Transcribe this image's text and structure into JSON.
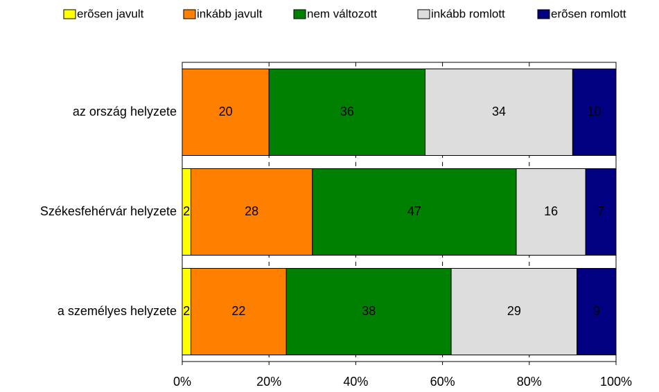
{
  "chart_data": {
    "type": "stacked-bar-horizontal",
    "categories": [
      "az ország helyzete",
      "Székesfehérvár helyzete",
      "a személyes helyzete"
    ],
    "series": [
      {
        "name": "erõsen javult",
        "color": "#ffff00",
        "values": [
          null,
          2,
          2
        ]
      },
      {
        "name": "inkább javult",
        "color": "#ff8000",
        "values": [
          20,
          28,
          22
        ]
      },
      {
        "name": "nem változott",
        "color": "#008000",
        "values": [
          36,
          47,
          38
        ]
      },
      {
        "name": "inkább romlott",
        "color": "#dddddd",
        "values": [
          34,
          16,
          29
        ]
      },
      {
        "name": "erõsen romlott",
        "color": "#000080",
        "values": [
          10,
          7,
          9
        ]
      }
    ],
    "xlim": [
      0,
      100
    ],
    "xticks": [
      {
        "value": 0,
        "label": "0%"
      },
      {
        "value": 20,
        "label": "20%"
      },
      {
        "value": 40,
        "label": "40%"
      },
      {
        "value": 60,
        "label": "60%"
      },
      {
        "value": 80,
        "label": "80%"
      },
      {
        "value": 100,
        "label": "100%"
      }
    ],
    "grid": true,
    "legend": "top"
  }
}
